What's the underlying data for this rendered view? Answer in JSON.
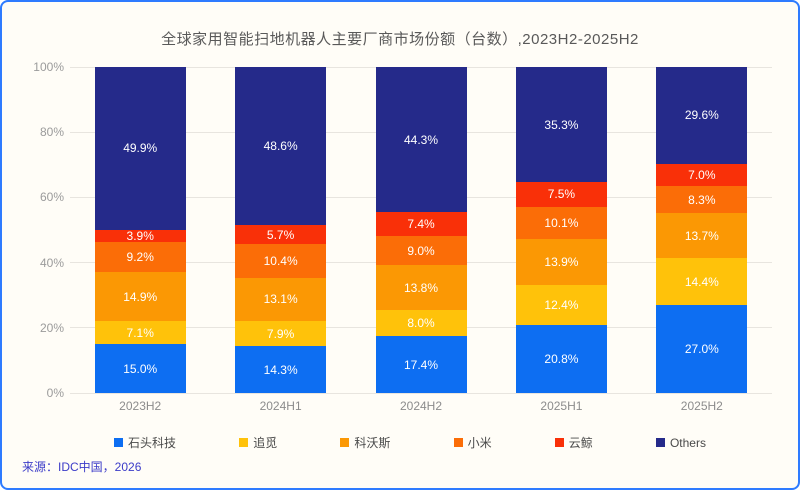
{
  "chart_data": {
    "type": "bar",
    "stacked": true,
    "title": "全球家用智能扫地机器人主要厂商市场份额（台数）,2023H2-2025H2",
    "categories": [
      "2023H2",
      "2024H1",
      "2024H2",
      "2025H1",
      "2025H2"
    ],
    "series": [
      {
        "name": "石头科技",
        "color": "#0D6EF2",
        "values": [
          15.0,
          14.3,
          17.4,
          20.8,
          27.0
        ]
      },
      {
        "name": "追觅",
        "color": "#FFC20A",
        "values": [
          7.1,
          7.9,
          8.0,
          12.4,
          14.4
        ]
      },
      {
        "name": "科沃斯",
        "color": "#FB9804",
        "values": [
          14.9,
          13.1,
          13.8,
          13.9,
          13.7
        ]
      },
      {
        "name": "小米",
        "color": "#FB6D07",
        "values": [
          9.2,
          10.4,
          9.0,
          10.1,
          8.3
        ]
      },
      {
        "name": "云鲸",
        "color": "#F93008",
        "values": [
          3.9,
          5.7,
          7.4,
          7.5,
          7.0
        ]
      },
      {
        "name": "Others",
        "color": "#252A8A",
        "values": [
          49.9,
          48.6,
          44.3,
          35.3,
          29.6
        ]
      }
    ],
    "ylim": [
      0,
      100
    ],
    "yticks": [
      "0%",
      "20%",
      "40%",
      "60%",
      "80%",
      "100%"
    ],
    "grid": true,
    "legend_position": "bottom",
    "value_label_suffix": "%"
  },
  "source": "来源：IDC中国，2026",
  "style_colors": {
    "frame_border": "#2E7BFF",
    "background": "#FFFDF7",
    "title_text": "#595959",
    "axis_text": "#9B9B9B",
    "source_text": "#3C3CC8",
    "gridline": "#E8E5DF"
  }
}
